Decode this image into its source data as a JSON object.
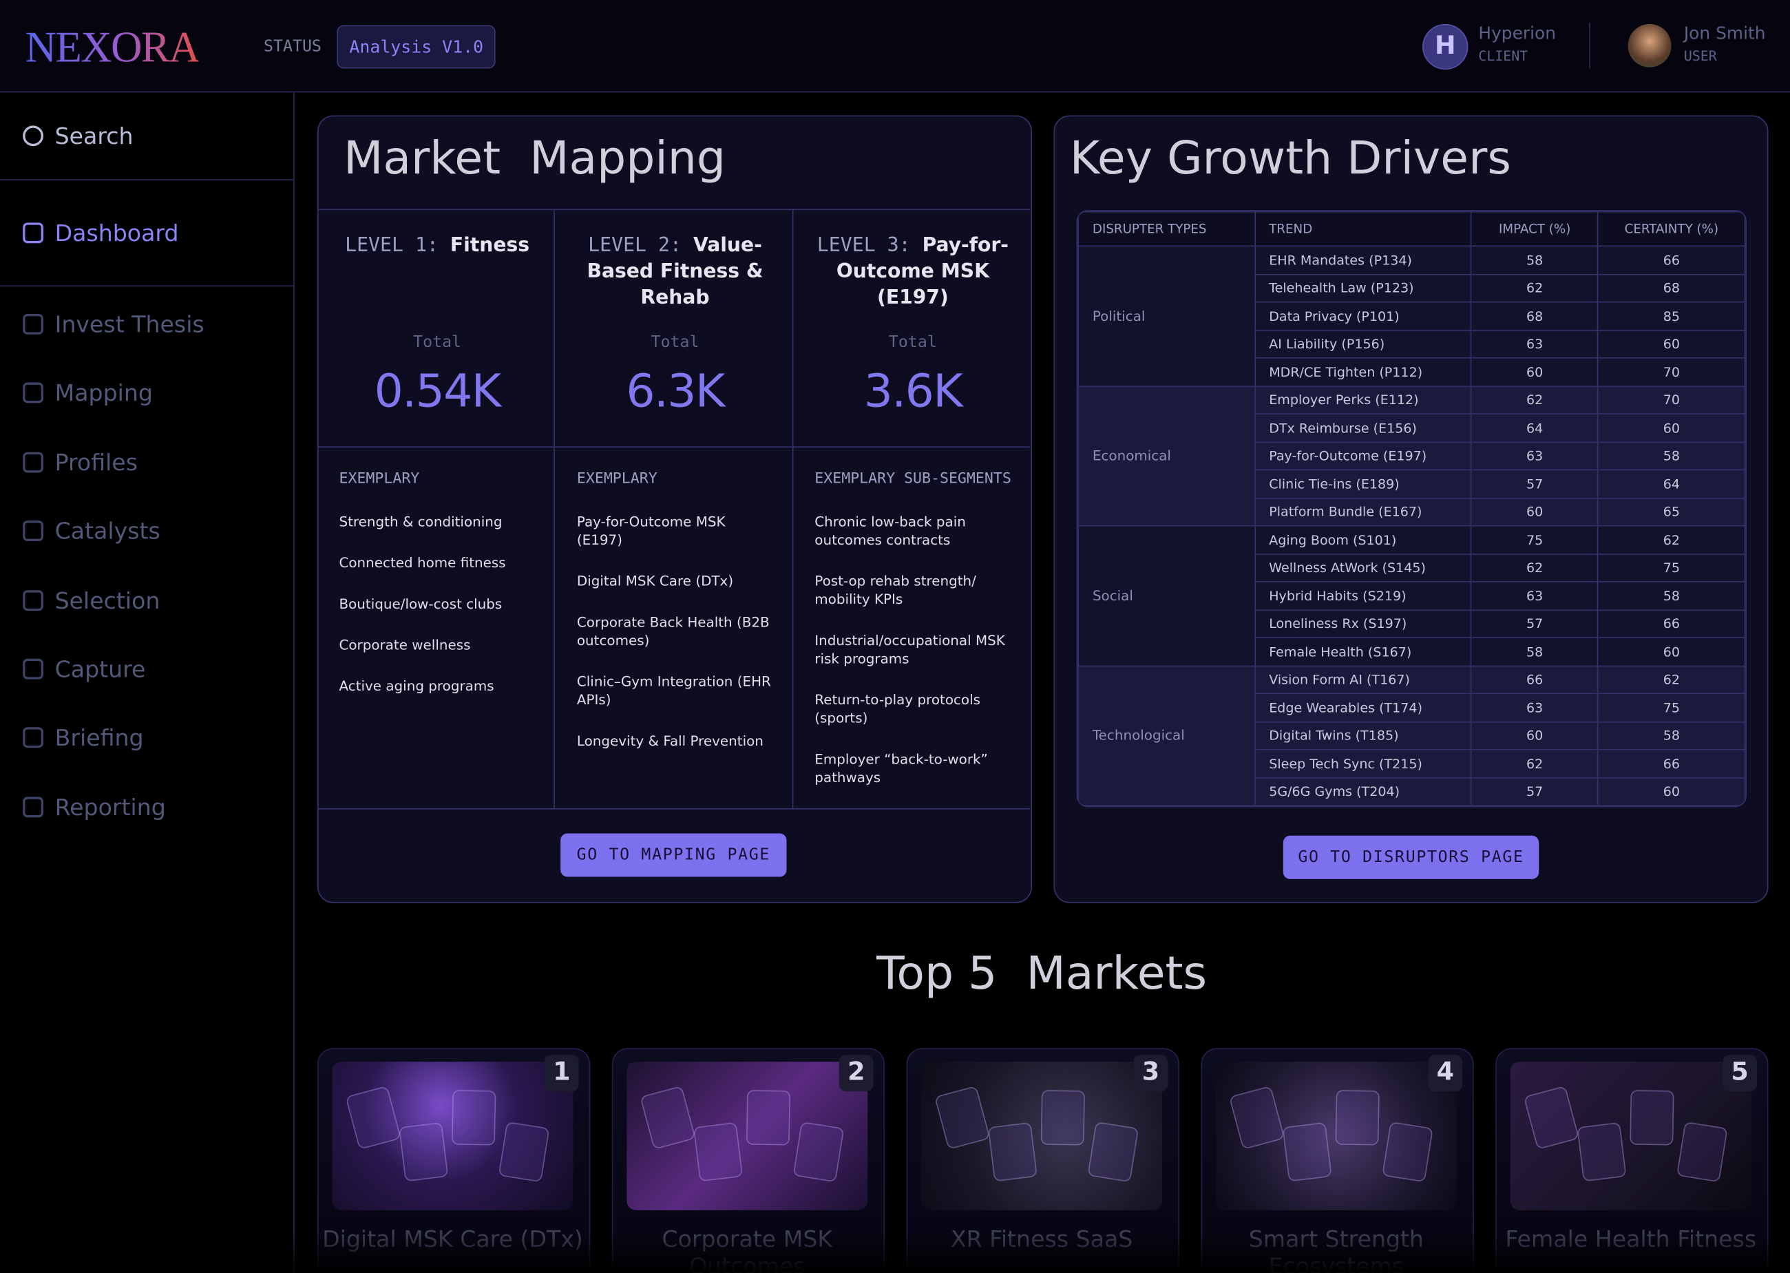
{
  "header": {
    "logo": "NEXORA",
    "status_label": "STATUS",
    "status_value": "Analysis V1.0",
    "client": {
      "initial": "H",
      "name": "Hyperion",
      "role": "CLIENT"
    },
    "user": {
      "name": "Jon Smith",
      "role": "USER"
    }
  },
  "sidebar": {
    "search": "Search",
    "active": "Dashboard",
    "items": [
      "Invest Thesis",
      "Mapping",
      "Profiles",
      "Catalysts",
      "Selection",
      "Capture",
      "Briefing",
      "Reporting"
    ]
  },
  "market_mapping": {
    "title": "Market  Mapping",
    "levels": [
      {
        "level": "LEVEL 1:",
        "name": "Fitness",
        "total_label": "Total",
        "total": "0.54K",
        "exemplary_label": "EXEMPLARY",
        "items": [
          "Strength & conditioning",
          "Connected home fitness",
          "Boutique/low-cost clubs",
          "Corporate wellness",
          "Active aging programs"
        ]
      },
      {
        "level": "LEVEL 2:",
        "name": "Value-Based Fitness & Rehab",
        "total_label": "Total",
        "total": "6.3K",
        "exemplary_label": "EXEMPLARY",
        "items": [
          "Pay-for-Outcome MSK (E197)",
          "Digital MSK Care (DTx)",
          "Corporate Back Health (B2B outcomes)",
          "Clinic–Gym Integration (EHR APIs)",
          "Longevity & Fall Prevention"
        ]
      },
      {
        "level": "LEVEL 3:",
        "name": "Pay-for-Outcome MSK (E197)",
        "total_label": "Total",
        "total": "3.6K",
        "exemplary_label": "EXEMPLARY SUB-SEGMENTS",
        "items": [
          "Chronic low-back pain outcomes contracts",
          "Post-op rehab strength/ mobility KPIs",
          "Industrial/occupational MSK risk programs",
          "Return-to-play protocols (sports)",
          "Employer “back-to-work” pathways"
        ]
      }
    ],
    "button": "GO TO MAPPING PAGE"
  },
  "key_growth_drivers": {
    "title": "Key Growth Drivers",
    "columns": [
      "DISRUPTER TYPES",
      "TREND",
      "IMPACT (%)",
      "CERTAINTY (%)"
    ],
    "groups": [
      {
        "name": "Political",
        "rows": [
          [
            "EHR Mandates (P134)",
            58,
            66
          ],
          [
            "Telehealth Law (P123)",
            62,
            68
          ],
          [
            "Data Privacy (P101)",
            68,
            85
          ],
          [
            "AI Liability (P156)",
            63,
            60
          ],
          [
            "MDR/CE Tighten (P112)",
            60,
            70
          ]
        ]
      },
      {
        "name": "Economical",
        "rows": [
          [
            "Employer Perks (E112)",
            62,
            70
          ],
          [
            "DTx Reimburse (E156)",
            64,
            60
          ],
          [
            "Pay-for-Outcome (E197)",
            63,
            58
          ],
          [
            "Clinic Tie-ins (E189)",
            57,
            64
          ],
          [
            "Platform Bundle (E167)",
            60,
            65
          ]
        ]
      },
      {
        "name": "Social",
        "rows": [
          [
            "Aging Boom (S101)",
            75,
            62
          ],
          [
            "Wellness AtWork (S145)",
            62,
            75
          ],
          [
            "Hybrid Habits (S219)",
            63,
            58
          ],
          [
            "Loneliness Rx (S197)",
            57,
            66
          ],
          [
            "Female Health (S167)",
            58,
            60
          ]
        ]
      },
      {
        "name": "Technological",
        "rows": [
          [
            "Vision Form AI (T167)",
            66,
            62
          ],
          [
            "Edge Wearables (T174)",
            63,
            75
          ],
          [
            "Digital Twins (T185)",
            60,
            58
          ],
          [
            "Sleep Tech Sync (T215)",
            62,
            66
          ],
          [
            "5G/6G Gyms (T204)",
            57,
            60
          ]
        ]
      }
    ],
    "button": "GO TO DISRUPTORS PAGE"
  },
  "top_markets": {
    "title": "Top 5  Markets",
    "cards": [
      {
        "rank": "1",
        "name": "Digital MSK Care (DTx)"
      },
      {
        "rank": "2",
        "name": "Corporate MSK Outcomes"
      },
      {
        "rank": "3",
        "name": "XR Fitness SaaS"
      },
      {
        "rank": "4",
        "name": "Smart Strength Ecosystems"
      },
      {
        "rank": "5",
        "name": "Female Health Fitness"
      }
    ]
  }
}
